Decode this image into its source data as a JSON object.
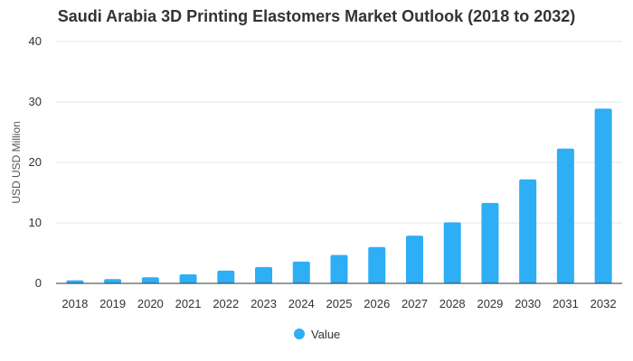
{
  "chart_data": {
    "type": "bar",
    "title": "Saudi Arabia 3D Printing Elastomers Market Outlook (2018 to 2032)",
    "ylabel": "USD USD Million",
    "xlabel": "",
    "ylim": [
      0,
      40
    ],
    "yticks": [
      0,
      10,
      20,
      30,
      40
    ],
    "grid": true,
    "legend_position": "bottom",
    "categories": [
      "2018",
      "2019",
      "2020",
      "2021",
      "2022",
      "2023",
      "2024",
      "2025",
      "2026",
      "2027",
      "2028",
      "2029",
      "2030",
      "2031",
      "2032"
    ],
    "series": [
      {
        "name": "Value",
        "color": "#2eaef5",
        "values": [
          0.5,
          0.7,
          1.0,
          1.5,
          2.1,
          2.7,
          3.6,
          4.7,
          6.0,
          7.9,
          10.1,
          13.3,
          17.2,
          22.3,
          28.9
        ]
      }
    ]
  }
}
